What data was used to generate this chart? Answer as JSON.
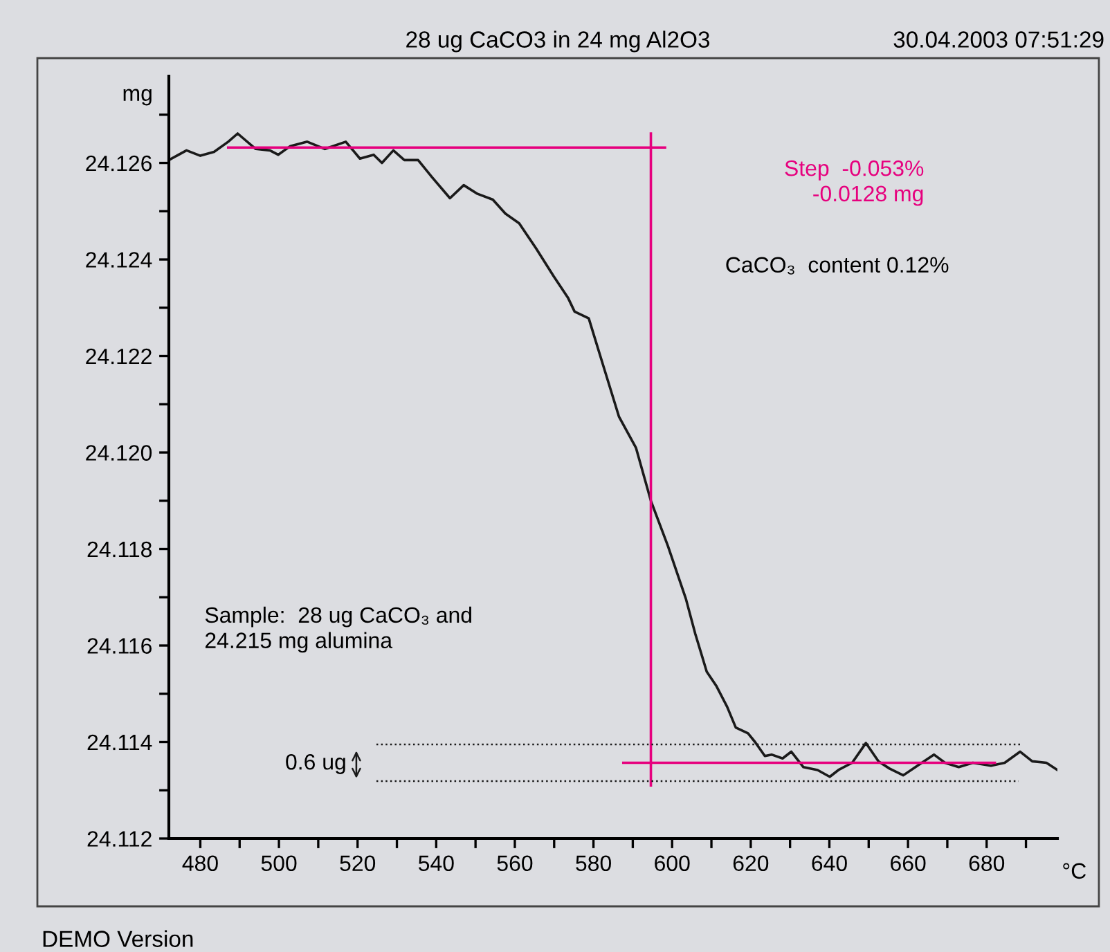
{
  "chart_data": {
    "type": "line",
    "title": "28 ug CaCO3 in 24 mg Al2O3",
    "xlabel": "°C",
    "ylabel": "mg",
    "annotations": [
      "30.04.2003 07:51:29",
      "Step  -0.053%\n-0.0128 mg",
      "CaCO₃  content 0.12%",
      "Sample:  28 ug CaCO₃ and\n24.215 mg alumina",
      "0.6 ug",
      "DEMO Version"
    ],
    "series": [
      {
        "color": "#1a1a1a",
        "line_style": "solid",
        "x": [
          472.0,
          476.5,
          480.0,
          483.5,
          487.1,
          489.5,
          494.1,
          497.7,
          499.8,
          502.9,
          507.2,
          511.7,
          517.0,
          520.6,
          524.1,
          526.2,
          529.1,
          531.9,
          535.4,
          538.9,
          543.5,
          547.0,
          550.5,
          554.4,
          557.6,
          561.1,
          565.4,
          569.9,
          573.5,
          575.2,
          578.8,
          582.3,
          586.5,
          590.8,
          594.6,
          598.9,
          603.5,
          605.9,
          608.8,
          611.2,
          614.0,
          616.2,
          619.3,
          621.1,
          623.6,
          625.3,
          628.1,
          630.3,
          633.4,
          637.0,
          640.1,
          642.3,
          645.8,
          649.3,
          652.5,
          655.3,
          658.8,
          662.4,
          666.6,
          669.4,
          672.9,
          676.5,
          681.1,
          684.6,
          688.5,
          691.6,
          695.2,
          698.0
        ],
        "values": [
          24.12606,
          24.12626,
          24.12615,
          24.12623,
          24.12644,
          24.12661,
          24.12629,
          24.12626,
          24.12617,
          24.12635,
          24.12644,
          24.12629,
          24.12644,
          24.12609,
          24.12617,
          24.126,
          24.12626,
          24.12606,
          24.12606,
          24.12571,
          24.12527,
          24.12554,
          24.12536,
          24.12524,
          24.12495,
          24.12475,
          24.12423,
          24.12365,
          24.12321,
          24.12292,
          24.12278,
          24.12185,
          24.12074,
          24.1201,
          24.119,
          24.11807,
          24.11697,
          24.11624,
          24.11546,
          24.11517,
          24.11473,
          24.1143,
          24.11418,
          24.114,
          24.11371,
          24.11374,
          24.11366,
          24.1138,
          24.11348,
          24.11342,
          24.11328,
          24.11342,
          24.11357,
          24.11398,
          24.1136,
          24.11345,
          24.11331,
          24.11351,
          24.11374,
          24.11357,
          24.11348,
          24.11357,
          24.11351,
          24.11357,
          24.1138,
          24.1136,
          24.11357,
          24.11342
        ]
      },
      {
        "color": "#e6007e",
        "line_style": "solid",
        "x": [
          487.1,
          598.2
        ],
        "values": [
          24.12632,
          24.12632
        ]
      },
      {
        "color": "#e6007e",
        "line_style": "solid",
        "x": [
          594.6,
          594.6
        ],
        "values": [
          24.12661,
          24.1131
        ]
      },
      {
        "color": "#e6007e",
        "line_style": "solid",
        "x": [
          587.6,
          682.1
        ],
        "values": [
          24.11357,
          24.11357
        ]
      },
      {
        "color": "#1a1a1a",
        "line_style": "dotted",
        "x": [
          524.8,
          689.2
        ],
        "values": [
          24.11395,
          24.11395
        ]
      },
      {
        "color": "#1a1a1a",
        "line_style": "dotted",
        "x": [
          524.8,
          688.1
        ],
        "values": [
          24.11319,
          24.11319
        ]
      }
    ],
    "xlim": [
      472,
      698
    ],
    "ylim": [
      24.112,
      24.1278
    ],
    "xticks": [
      480,
      {
        "value": 490,
        "label": null
      },
      500,
      {
        "value": 510,
        "label": null
      },
      520,
      {
        "value": 530,
        "label": null
      },
      540,
      {
        "value": 550,
        "label": null
      },
      560,
      {
        "value": 570,
        "label": null
      },
      580,
      {
        "value": 590,
        "label": null
      },
      600,
      {
        "value": 610,
        "label": null
      },
      620,
      {
        "value": 630,
        "label": null
      },
      640,
      {
        "value": 650,
        "label": null
      },
      660,
      {
        "value": 670,
        "label": null
      },
      680,
      {
        "value": 690,
        "label": null
      }
    ],
    "yticks": [
      {
        "value": 24.112,
        "label": "24.112"
      },
      {
        "value": 24.113,
        "label": null
      },
      {
        "value": 24.114,
        "label": "24.114"
      },
      {
        "value": 24.115,
        "label": null
      },
      {
        "value": 24.116,
        "label": "24.116"
      },
      {
        "value": 24.117,
        "label": null
      },
      {
        "value": 24.118,
        "label": "24.118"
      },
      {
        "value": 24.119,
        "label": null
      },
      {
        "value": 24.12,
        "label": "24.120"
      },
      {
        "value": 24.121,
        "label": null
      },
      {
        "value": 24.122,
        "label": "24.122"
      },
      {
        "value": 24.123,
        "label": null
      },
      {
        "value": 24.124,
        "label": "24.124"
      },
      {
        "value": 24.125,
        "label": null
      },
      {
        "value": 24.126,
        "label": "24.126"
      },
      {
        "value": 24.127,
        "label": null
      }
    ],
    "grid": false,
    "legend": false
  }
}
